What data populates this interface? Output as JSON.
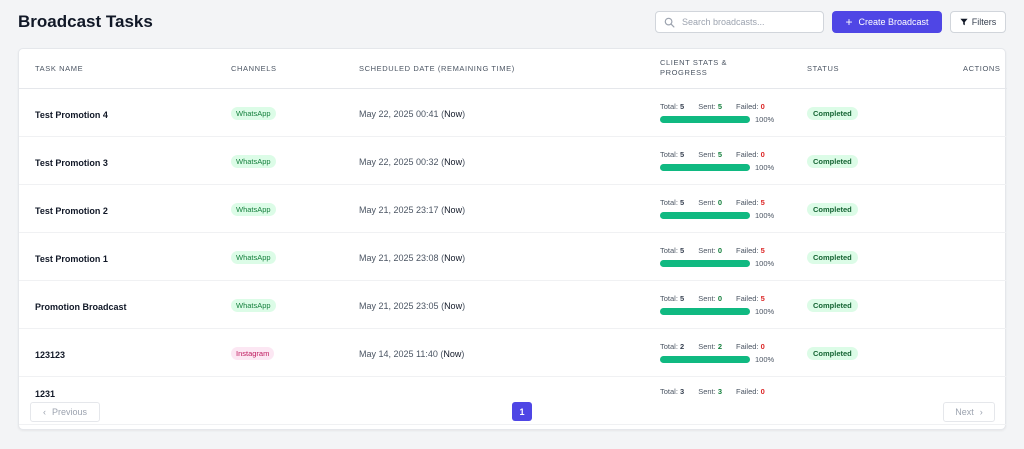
{
  "header": {
    "title": "Broadcast Tasks",
    "search_placeholder": "Search broadcasts...",
    "create_label": "Create Broadcast",
    "filters_label": "Filters"
  },
  "table": {
    "columns": {
      "task_name": "TASK NAME",
      "channels": "CHANNELS",
      "scheduled": "SCHEDULED DATE (REMAINING TIME)",
      "stats_line1": "CLIENT STATS &",
      "stats_line2": "PROGRESS",
      "status": "STATUS",
      "actions": "ACTIONS"
    },
    "labels": {
      "total": "Total:",
      "sent": "Sent:",
      "failed": "Failed:"
    },
    "rows": [
      {
        "name": "Test Promotion 4",
        "channel": "WhatsApp",
        "date": "May 22, 2025 00:41",
        "remaining": "Now",
        "total": "5",
        "sent": "5",
        "failed": "0",
        "progress": 100,
        "progress_label": "100%",
        "status": "Completed"
      },
      {
        "name": "Test Promotion 3",
        "channel": "WhatsApp",
        "date": "May 22, 2025 00:32",
        "remaining": "Now",
        "total": "5",
        "sent": "5",
        "failed": "0",
        "progress": 100,
        "progress_label": "100%",
        "status": "Completed"
      },
      {
        "name": "Test Promotion 2",
        "channel": "WhatsApp",
        "date": "May 21, 2025 23:17",
        "remaining": "Now",
        "total": "5",
        "sent": "0",
        "failed": "5",
        "progress": 100,
        "progress_label": "100%",
        "status": "Completed"
      },
      {
        "name": "Test Promotion 1",
        "channel": "WhatsApp",
        "date": "May 21, 2025 23:08",
        "remaining": "Now",
        "total": "5",
        "sent": "0",
        "failed": "5",
        "progress": 100,
        "progress_label": "100%",
        "status": "Completed"
      },
      {
        "name": "Promotion Broadcast",
        "channel": "WhatsApp",
        "date": "May 21, 2025 23:05",
        "remaining": "Now",
        "total": "5",
        "sent": "0",
        "failed": "5",
        "progress": 100,
        "progress_label": "100%",
        "status": "Completed"
      },
      {
        "name": "123123",
        "channel": "Instagram",
        "date": "May 14, 2025 11:40",
        "remaining": "Now",
        "total": "2",
        "sent": "2",
        "failed": "0",
        "progress": 100,
        "progress_label": "100%",
        "status": "Completed"
      },
      {
        "name": "1231",
        "total": "3",
        "sent": "3",
        "failed": "0"
      }
    ]
  },
  "pagination": {
    "prev": "Previous",
    "page": "1",
    "next": "Next"
  },
  "colors": {
    "accent": "#4f46e5",
    "success": "#10b981",
    "danger": "#dc2626"
  }
}
